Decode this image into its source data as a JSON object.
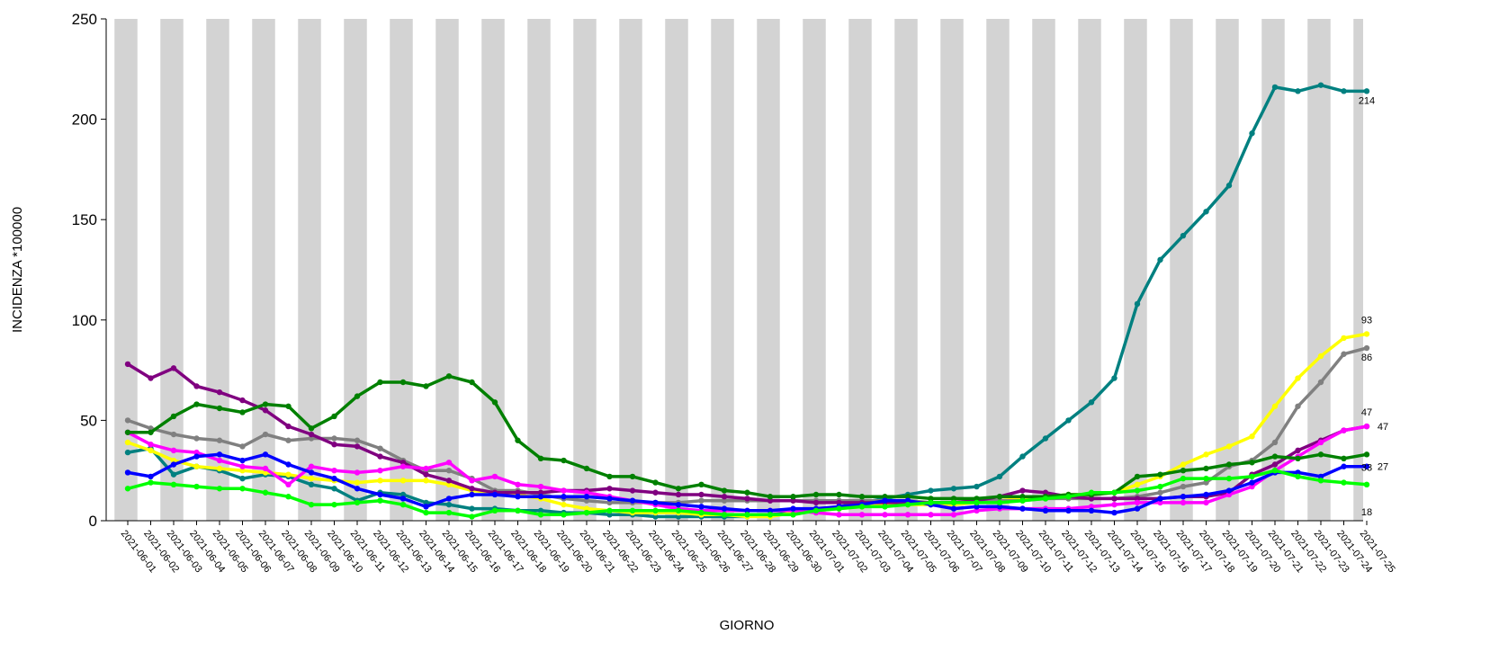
{
  "chart_data": {
    "type": "line",
    "xlabel": "GIORNO",
    "ylabel": "INCIDENZA *100000",
    "ylim": [
      0,
      250
    ],
    "yticks": [
      0,
      50,
      100,
      150,
      200,
      250
    ],
    "grid": "alternating gray vertical bands",
    "categories": [
      "2021-06-01",
      "2021-06-02",
      "2021-06-03",
      "2021-06-04",
      "2021-06-05",
      "2021-06-06",
      "2021-06-07",
      "2021-06-08",
      "2021-06-09",
      "2021-06-10",
      "2021-06-11",
      "2021-06-12",
      "2021-06-13",
      "2021-06-14",
      "2021-06-15",
      "2021-06-16",
      "2021-06-17",
      "2021-06-18",
      "2021-06-19",
      "2021-06-20",
      "2021-06-21",
      "2021-06-22",
      "2021-06-23",
      "2021-06-24",
      "2021-06-25",
      "2021-06-26",
      "2021-06-27",
      "2021-06-28",
      "2021-06-29",
      "2021-06-30",
      "2021-07-01",
      "2021-07-02",
      "2021-07-03",
      "2021-07-04",
      "2021-07-05",
      "2021-07-06",
      "2021-07-07",
      "2021-07-08",
      "2021-07-09",
      "2021-07-10",
      "2021-07-11",
      "2021-07-12",
      "2021-07-13",
      "2021-07-14",
      "2021-07-15",
      "2021-07-16",
      "2021-07-17",
      "2021-07-18",
      "2021-07-19",
      "2021-07-20",
      "2021-07-21",
      "2021-07-22",
      "2021-07-23",
      "2021-07-24",
      "2021-07-25"
    ],
    "series": [
      {
        "color": "#008080",
        "end_label": "214",
        "values": [
          34,
          36,
          23,
          27,
          25,
          21,
          23,
          22,
          18,
          16,
          10,
          14,
          13,
          9,
          8,
          6,
          6,
          5,
          5,
          4,
          4,
          3,
          3,
          2,
          2,
          2,
          2,
          2,
          3,
          4,
          5,
          7,
          9,
          11,
          13,
          15,
          16,
          17,
          22,
          32,
          41,
          50,
          59,
          71,
          108,
          130,
          142,
          154,
          167,
          193,
          216,
          214,
          217,
          214,
          214
        ]
      },
      {
        "color": "#ffff00",
        "end_label": "93",
        "values": [
          39,
          35,
          30,
          27,
          26,
          25,
          24,
          23,
          21,
          20,
          19,
          20,
          20,
          20,
          18,
          15,
          14,
          13,
          11,
          8,
          6,
          5,
          4,
          4,
          4,
          3,
          3,
          2,
          2,
          4,
          5,
          6,
          7,
          8,
          8,
          8,
          8,
          9,
          10,
          11,
          12,
          13,
          13,
          14,
          18,
          22,
          28,
          33,
          37,
          42,
          57,
          71,
          82,
          91,
          93
        ]
      },
      {
        "color": "#808080",
        "end_label": "86",
        "values": [
          50,
          46,
          43,
          41,
          40,
          37,
          43,
          40,
          41,
          41,
          40,
          36,
          30,
          25,
          25,
          21,
          15,
          15,
          13,
          11,
          10,
          9,
          9,
          9,
          9,
          10,
          10,
          10,
          10,
          10,
          10,
          10,
          10,
          10,
          10,
          9,
          9,
          10,
          10,
          10,
          11,
          11,
          11,
          11,
          12,
          14,
          17,
          19,
          27,
          30,
          39,
          57,
          69,
          83,
          86
        ]
      },
      {
        "color": "#800080",
        "end_label": "47",
        "values": [
          78,
          71,
          76,
          67,
          64,
          60,
          55,
          47,
          43,
          38,
          37,
          32,
          29,
          23,
          20,
          16,
          14,
          14,
          14,
          15,
          15,
          16,
          15,
          14,
          13,
          13,
          12,
          11,
          10,
          10,
          9,
          9,
          9,
          9,
          9,
          9,
          9,
          10,
          12,
          15,
          14,
          12,
          11,
          11,
          11,
          11,
          12,
          12,
          14,
          23,
          28,
          35,
          40,
          45,
          47
        ]
      },
      {
        "color": "#ff00ff",
        "end_label": "47",
        "values": [
          44,
          38,
          35,
          34,
          30,
          27,
          26,
          18,
          27,
          25,
          24,
          25,
          27,
          26,
          29,
          20,
          22,
          18,
          17,
          15,
          14,
          12,
          10,
          8,
          6,
          5,
          5,
          5,
          5,
          5,
          4,
          3,
          3,
          3,
          3,
          3,
          3,
          5,
          6,
          6,
          6,
          6,
          7,
          8,
          9,
          9,
          9,
          9,
          13,
          17,
          25,
          32,
          39,
          45,
          47
        ]
      },
      {
        "color": "#008000",
        "end_label": "33",
        "values": [
          44,
          44,
          52,
          58,
          56,
          54,
          58,
          57,
          46,
          52,
          62,
          69,
          69,
          67,
          72,
          69,
          59,
          40,
          31,
          30,
          26,
          22,
          22,
          19,
          16,
          18,
          15,
          14,
          12,
          12,
          13,
          13,
          12,
          12,
          12,
          11,
          11,
          11,
          12,
          12,
          12,
          13,
          13,
          14,
          22,
          23,
          25,
          26,
          28,
          29,
          32,
          31,
          33,
          31,
          33
        ]
      },
      {
        "color": "#0000ff",
        "end_label": "27",
        "values": [
          24,
          22,
          28,
          32,
          33,
          30,
          33,
          28,
          24,
          21,
          16,
          13,
          11,
          7,
          11,
          13,
          13,
          12,
          12,
          12,
          12,
          11,
          10,
          9,
          8,
          7,
          6,
          5,
          5,
          6,
          6,
          7,
          8,
          10,
          10,
          8,
          6,
          7,
          7,
          6,
          5,
          5,
          5,
          4,
          6,
          11,
          12,
          13,
          15,
          19,
          24,
          24,
          22,
          27,
          27
        ]
      },
      {
        "color": "#00ff00",
        "end_label": "18",
        "values": [
          16,
          19,
          18,
          17,
          16,
          16,
          14,
          12,
          8,
          8,
          9,
          10,
          8,
          4,
          4,
          2,
          5,
          5,
          3,
          3,
          4,
          5,
          5,
          5,
          5,
          4,
          3,
          3,
          3,
          3,
          5,
          6,
          7,
          7,
          8,
          9,
          9,
          9,
          9,
          10,
          11,
          12,
          14,
          14,
          15,
          17,
          21,
          21,
          21,
          22,
          25,
          22,
          20,
          19,
          18
        ]
      }
    ]
  }
}
